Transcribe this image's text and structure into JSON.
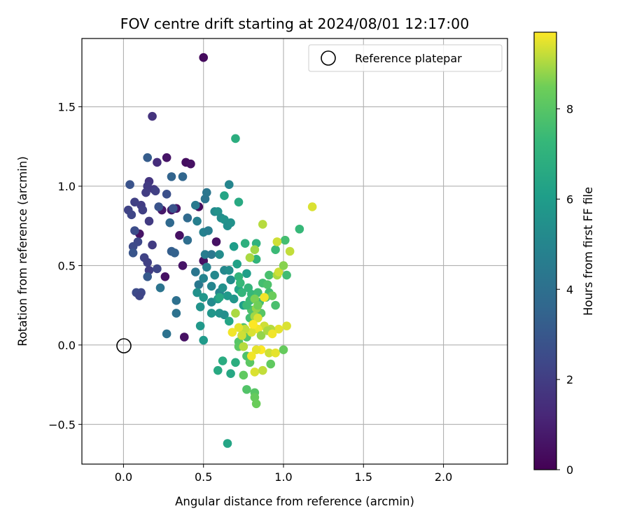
{
  "chart_data": {
    "type": "scatter",
    "title": "FOV centre drift starting at 2024/08/01 12:17:00",
    "xlabel": "Angular distance from reference (arcmin)",
    "ylabel": "Rotation from reference (arcmin)",
    "xlim": [
      -0.26,
      2.4
    ],
    "ylim": [
      -0.75,
      1.93
    ],
    "xticks": [
      0.0,
      0.5,
      1.0,
      1.5,
      2.0
    ],
    "xtick_labels": [
      "0.0",
      "0.5",
      "1.0",
      "1.5",
      "2.0"
    ],
    "yticks": [
      -0.5,
      0.0,
      0.5,
      1.0,
      1.5
    ],
    "ytick_labels": [
      "−0.5",
      "0.0",
      "0.5",
      "1.0",
      "1.5"
    ],
    "grid": true,
    "legend": {
      "placement": "top-right",
      "entries": [
        "Reference platepar"
      ]
    },
    "reference_point": {
      "x": 0.0,
      "y": 0.0,
      "label": "Reference platepar"
    },
    "colorbar": {
      "label": "Hours from first FF file",
      "colormap": "viridis",
      "range": [
        0,
        9.7
      ],
      "ticks": [
        0,
        2,
        4,
        6,
        8
      ],
      "tick_labels": [
        "0",
        "2",
        "4",
        "6",
        "8"
      ]
    },
    "points": [
      {
        "x": 0.5,
        "y": 1.81,
        "c": 0.3
      },
      {
        "x": 0.18,
        "y": 1.44,
        "c": 1.6
      },
      {
        "x": 0.27,
        "y": 1.18,
        "c": 0.6
      },
      {
        "x": 0.39,
        "y": 1.15,
        "c": 0.4
      },
      {
        "x": 0.42,
        "y": 1.14,
        "c": 0.5
      },
      {
        "x": 0.37,
        "y": 0.5,
        "c": 0.6
      },
      {
        "x": 0.26,
        "y": 0.43,
        "c": 0.5
      },
      {
        "x": 0.38,
        "y": 0.05,
        "c": 0.5
      },
      {
        "x": 0.24,
        "y": 0.85,
        "c": 0.7
      },
      {
        "x": 0.33,
        "y": 0.86,
        "c": 0.6
      },
      {
        "x": 0.35,
        "y": 0.69,
        "c": 0.5
      },
      {
        "x": 0.47,
        "y": 0.87,
        "c": 0.3
      },
      {
        "x": 0.5,
        "y": 0.53,
        "c": 0.5
      },
      {
        "x": 0.58,
        "y": 0.65,
        "c": 0.5
      },
      {
        "x": 0.1,
        "y": 0.7,
        "c": 0.6
      },
      {
        "x": 0.3,
        "y": 0.85,
        "c": 0.7
      },
      {
        "x": 0.21,
        "y": 1.15,
        "c": 1.4
      },
      {
        "x": 0.16,
        "y": 1.03,
        "c": 1.7
      },
      {
        "x": 0.19,
        "y": 0.98,
        "c": 1.8
      },
      {
        "x": 0.15,
        "y": 1.0,
        "c": 1.9
      },
      {
        "x": 0.11,
        "y": 0.88,
        "c": 2.0
      },
      {
        "x": 0.07,
        "y": 0.9,
        "c": 2.1
      },
      {
        "x": 0.03,
        "y": 0.85,
        "c": 2.2
      },
      {
        "x": 0.05,
        "y": 0.82,
        "c": 2.3
      },
      {
        "x": 0.12,
        "y": 0.85,
        "c": 2.1
      },
      {
        "x": 0.09,
        "y": 0.65,
        "c": 2.4
      },
      {
        "x": 0.06,
        "y": 0.62,
        "c": 2.5
      },
      {
        "x": 0.07,
        "y": 0.72,
        "c": 2.6
      },
      {
        "x": 0.13,
        "y": 0.55,
        "c": 2.2
      },
      {
        "x": 0.15,
        "y": 0.52,
        "c": 2.1
      },
      {
        "x": 0.16,
        "y": 0.47,
        "c": 2.0
      },
      {
        "x": 0.21,
        "y": 0.48,
        "c": 2.3
      },
      {
        "x": 0.11,
        "y": 0.33,
        "c": 2.4
      },
      {
        "x": 0.08,
        "y": 0.33,
        "c": 2.5
      },
      {
        "x": 0.1,
        "y": 0.31,
        "c": 2.3
      },
      {
        "x": 0.16,
        "y": 0.78,
        "c": 1.9
      },
      {
        "x": 0.14,
        "y": 0.96,
        "c": 2.0
      },
      {
        "x": 0.18,
        "y": 0.63,
        "c": 1.9
      },
      {
        "x": 0.2,
        "y": 0.97,
        "c": 2.1
      },
      {
        "x": 0.27,
        "y": 0.95,
        "c": 2.7
      },
      {
        "x": 0.31,
        "y": 0.86,
        "c": 2.8
      },
      {
        "x": 0.22,
        "y": 0.87,
        "c": 2.8
      },
      {
        "x": 0.15,
        "y": 1.18,
        "c": 3.2
      },
      {
        "x": 0.04,
        "y": 1.01,
        "c": 2.8
      },
      {
        "x": 0.06,
        "y": 0.58,
        "c": 2.9
      },
      {
        "x": 0.15,
        "y": 0.43,
        "c": 3.1
      },
      {
        "x": 0.3,
        "y": 0.59,
        "c": 3.3
      },
      {
        "x": 0.32,
        "y": 0.58,
        "c": 3.4
      },
      {
        "x": 0.3,
        "y": 1.06,
        "c": 3.5
      },
      {
        "x": 0.37,
        "y": 1.06,
        "c": 3.6
      },
      {
        "x": 0.29,
        "y": 0.77,
        "c": 3.7
      },
      {
        "x": 0.4,
        "y": 0.8,
        "c": 3.8
      },
      {
        "x": 0.4,
        "y": 0.66,
        "c": 3.9
      },
      {
        "x": 0.33,
        "y": 0.28,
        "c": 4.0
      },
      {
        "x": 0.27,
        "y": 0.07,
        "c": 4.1
      },
      {
        "x": 0.33,
        "y": 0.2,
        "c": 4.1
      },
      {
        "x": 0.23,
        "y": 0.36,
        "c": 4.2
      },
      {
        "x": 0.45,
        "y": 0.46,
        "c": 4.3
      },
      {
        "x": 0.47,
        "y": 0.38,
        "c": 4.4
      },
      {
        "x": 0.51,
        "y": 0.92,
        "c": 4.2
      },
      {
        "x": 0.52,
        "y": 0.96,
        "c": 4.3
      },
      {
        "x": 0.51,
        "y": 0.57,
        "c": 4.6
      },
      {
        "x": 0.55,
        "y": 0.57,
        "c": 4.4
      },
      {
        "x": 0.45,
        "y": 0.88,
        "c": 4.5
      },
      {
        "x": 0.46,
        "y": 0.78,
        "c": 4.7
      },
      {
        "x": 0.5,
        "y": 0.71,
        "c": 4.8
      },
      {
        "x": 0.53,
        "y": 0.72,
        "c": 4.6
      },
      {
        "x": 0.5,
        "y": 0.42,
        "c": 4.9
      },
      {
        "x": 0.52,
        "y": 0.49,
        "c": 4.8
      },
      {
        "x": 0.55,
        "y": 0.37,
        "c": 5.0
      },
      {
        "x": 0.57,
        "y": 0.44,
        "c": 5.1
      },
      {
        "x": 0.55,
        "y": 0.27,
        "c": 5.2
      },
      {
        "x": 0.6,
        "y": 0.33,
        "c": 5.0
      },
      {
        "x": 0.6,
        "y": 0.57,
        "c": 5.3
      },
      {
        "x": 0.63,
        "y": 0.47,
        "c": 5.1
      },
      {
        "x": 0.66,
        "y": 0.47,
        "c": 5.4
      },
      {
        "x": 0.57,
        "y": 0.84,
        "c": 5.2
      },
      {
        "x": 0.59,
        "y": 0.84,
        "c": 5.5
      },
      {
        "x": 0.61,
        "y": 0.8,
        "c": 5.3
      },
      {
        "x": 0.63,
        "y": 0.79,
        "c": 5.6
      },
      {
        "x": 0.65,
        "y": 0.75,
        "c": 5.4
      },
      {
        "x": 0.67,
        "y": 0.77,
        "c": 5.5
      },
      {
        "x": 0.66,
        "y": 1.01,
        "c": 5.0
      },
      {
        "x": 0.6,
        "y": 0.2,
        "c": 5.6
      },
      {
        "x": 0.63,
        "y": 0.19,
        "c": 5.4
      },
      {
        "x": 0.55,
        "y": 0.2,
        "c": 5.7
      },
      {
        "x": 0.59,
        "y": 0.29,
        "c": 5.8
      },
      {
        "x": 0.62,
        "y": 0.36,
        "c": 5.5
      },
      {
        "x": 0.65,
        "y": 0.31,
        "c": 5.9
      },
      {
        "x": 0.67,
        "y": 0.41,
        "c": 5.3
      },
      {
        "x": 0.69,
        "y": 0.29,
        "c": 5.7
      },
      {
        "x": 0.48,
        "y": 0.12,
        "c": 5.8
      },
      {
        "x": 0.5,
        "y": 0.03,
        "c": 5.9
      },
      {
        "x": 0.48,
        "y": 0.24,
        "c": 5.6
      },
      {
        "x": 0.46,
        "y": 0.33,
        "c": 5.5
      },
      {
        "x": 0.5,
        "y": 0.3,
        "c": 5.7
      },
      {
        "x": 0.63,
        "y": 0.94,
        "c": 6.4
      },
      {
        "x": 0.72,
        "y": 0.9,
        "c": 6.6
      },
      {
        "x": 0.7,
        "y": 1.3,
        "c": 6.8
      },
      {
        "x": 0.69,
        "y": 0.62,
        "c": 6.0
      },
      {
        "x": 0.71,
        "y": 0.51,
        "c": 6.2
      },
      {
        "x": 0.66,
        "y": 0.15,
        "c": 6.4
      },
      {
        "x": 0.6,
        "y": 0.3,
        "c": 6.5
      },
      {
        "x": 0.72,
        "y": 0.35,
        "c": 6.3
      },
      {
        "x": 0.75,
        "y": 0.25,
        "c": 6.1
      },
      {
        "x": 0.74,
        "y": 0.06,
        "c": 6.6
      },
      {
        "x": 0.65,
        "y": -0.62,
        "c": 6.4
      },
      {
        "x": 0.59,
        "y": -0.16,
        "c": 6.6
      },
      {
        "x": 0.62,
        "y": -0.1,
        "c": 6.7
      },
      {
        "x": 0.67,
        "y": -0.18,
        "c": 6.5
      },
      {
        "x": 0.7,
        "y": -0.11,
        "c": 6.8
      },
      {
        "x": 0.77,
        "y": 0.45,
        "c": 6.1
      },
      {
        "x": 0.76,
        "y": 0.64,
        "c": 6.9
      },
      {
        "x": 0.83,
        "y": 0.64,
        "c": 7.0
      },
      {
        "x": 1.1,
        "y": 0.73,
        "c": 7.3
      },
      {
        "x": 0.83,
        "y": 0.54,
        "c": 7.1
      },
      {
        "x": 0.95,
        "y": 0.6,
        "c": 7.4
      },
      {
        "x": 1.01,
        "y": 0.66,
        "c": 7.6
      },
      {
        "x": 1.02,
        "y": 0.44,
        "c": 7.5
      },
      {
        "x": 0.91,
        "y": 0.44,
        "c": 7.7
      },
      {
        "x": 0.78,
        "y": 0.36,
        "c": 7.2
      },
      {
        "x": 0.8,
        "y": 0.32,
        "c": 7.3
      },
      {
        "x": 0.84,
        "y": 0.33,
        "c": 7.5
      },
      {
        "x": 0.87,
        "y": 0.39,
        "c": 7.6
      },
      {
        "x": 0.9,
        "y": 0.38,
        "c": 7.8
      },
      {
        "x": 0.91,
        "y": 0.33,
        "c": 7.6
      },
      {
        "x": 0.89,
        "y": 0.3,
        "c": 7.9
      },
      {
        "x": 0.85,
        "y": 0.27,
        "c": 7.5
      },
      {
        "x": 0.79,
        "y": 0.28,
        "c": 7.4
      },
      {
        "x": 0.8,
        "y": 0.22,
        "c": 7.8
      },
      {
        "x": 0.86,
        "y": 0.2,
        "c": 8.0
      },
      {
        "x": 0.95,
        "y": 0.25,
        "c": 7.7
      },
      {
        "x": 0.72,
        "y": 0.43,
        "c": 7.1
      },
      {
        "x": 0.73,
        "y": 0.39,
        "c": 7.3
      },
      {
        "x": 0.74,
        "y": 0.33,
        "c": 7.2
      },
      {
        "x": 0.77,
        "y": 0.25,
        "c": 7.4
      },
      {
        "x": 0.79,
        "y": 0.17,
        "c": 7.6
      },
      {
        "x": 0.75,
        "y": 0.11,
        "c": 7.7
      },
      {
        "x": 0.77,
        "y": 0.05,
        "c": 7.9
      },
      {
        "x": 0.72,
        "y": 0.02,
        "c": 8.0
      },
      {
        "x": 0.77,
        "y": -0.07,
        "c": 7.8
      },
      {
        "x": 0.79,
        "y": -0.11,
        "c": 8.1
      },
      {
        "x": 0.75,
        "y": -0.19,
        "c": 8.2
      },
      {
        "x": 0.77,
        "y": -0.28,
        "c": 7.9
      },
      {
        "x": 0.82,
        "y": -0.3,
        "c": 8.0
      },
      {
        "x": 0.82,
        "y": -0.33,
        "c": 8.3
      },
      {
        "x": 0.83,
        "y": -0.37,
        "c": 8.4
      },
      {
        "x": 0.92,
        "y": -0.12,
        "c": 8.2
      },
      {
        "x": 0.93,
        "y": 0.31,
        "c": 8.4
      },
      {
        "x": 0.72,
        "y": -0.01,
        "c": 8.1
      },
      {
        "x": 0.82,
        "y": 0.29,
        "c": 8.6
      },
      {
        "x": 0.83,
        "y": 0.23,
        "c": 8.8
      },
      {
        "x": 0.82,
        "y": 0.18,
        "c": 8.9
      },
      {
        "x": 0.84,
        "y": 0.25,
        "c": 8.5
      },
      {
        "x": 0.82,
        "y": 0.6,
        "c": 8.9
      },
      {
        "x": 0.79,
        "y": 0.55,
        "c": 9.0
      },
      {
        "x": 0.87,
        "y": 0.76,
        "c": 9.1
      },
      {
        "x": 0.96,
        "y": 0.65,
        "c": 9.3
      },
      {
        "x": 1.04,
        "y": 0.59,
        "c": 9.2
      },
      {
        "x": 1.18,
        "y": 0.87,
        "c": 9.4
      },
      {
        "x": 0.96,
        "y": 0.44,
        "c": 9.0
      },
      {
        "x": 0.97,
        "y": 0.46,
        "c": 9.3
      },
      {
        "x": 1.0,
        "y": 0.5,
        "c": 8.7
      },
      {
        "x": 1.02,
        "y": 0.12,
        "c": 9.4
      },
      {
        "x": 0.97,
        "y": 0.1,
        "c": 9.5
      },
      {
        "x": 0.92,
        "y": 0.1,
        "c": 9.1
      },
      {
        "x": 0.88,
        "y": 0.12,
        "c": 9.3
      },
      {
        "x": 0.84,
        "y": 0.1,
        "c": 9.6
      },
      {
        "x": 0.8,
        "y": 0.08,
        "c": 9.4
      },
      {
        "x": 0.76,
        "y": 0.1,
        "c": 9.2
      },
      {
        "x": 0.72,
        "y": 0.11,
        "c": 9.5
      },
      {
        "x": 0.68,
        "y": 0.08,
        "c": 9.6
      },
      {
        "x": 0.74,
        "y": 0.06,
        "c": 9.3
      },
      {
        "x": 0.86,
        "y": 0.06,
        "c": 8.8
      },
      {
        "x": 0.9,
        "y": 0.09,
        "c": 9.0
      },
      {
        "x": 0.93,
        "y": 0.07,
        "c": 9.6
      },
      {
        "x": 0.86,
        "y": -0.03,
        "c": 9.7
      },
      {
        "x": 0.83,
        "y": -0.03,
        "c": 9.5
      },
      {
        "x": 0.8,
        "y": -0.07,
        "c": 9.6
      },
      {
        "x": 0.75,
        "y": -0.01,
        "c": 9.1
      },
      {
        "x": 0.82,
        "y": -0.17,
        "c": 9.4
      },
      {
        "x": 0.87,
        "y": -0.16,
        "c": 9.2
      },
      {
        "x": 0.91,
        "y": -0.05,
        "c": 9.3
      },
      {
        "x": 0.95,
        "y": -0.05,
        "c": 9.5
      },
      {
        "x": 1.0,
        "y": -0.03,
        "c": 8.3
      },
      {
        "x": 0.88,
        "y": 0.3,
        "c": 9.6
      },
      {
        "x": 0.84,
        "y": 0.17,
        "c": 9.4
      },
      {
        "x": 0.81,
        "y": 0.13,
        "c": 9.7
      },
      {
        "x": 0.7,
        "y": 0.2,
        "c": 9.0
      }
    ]
  }
}
